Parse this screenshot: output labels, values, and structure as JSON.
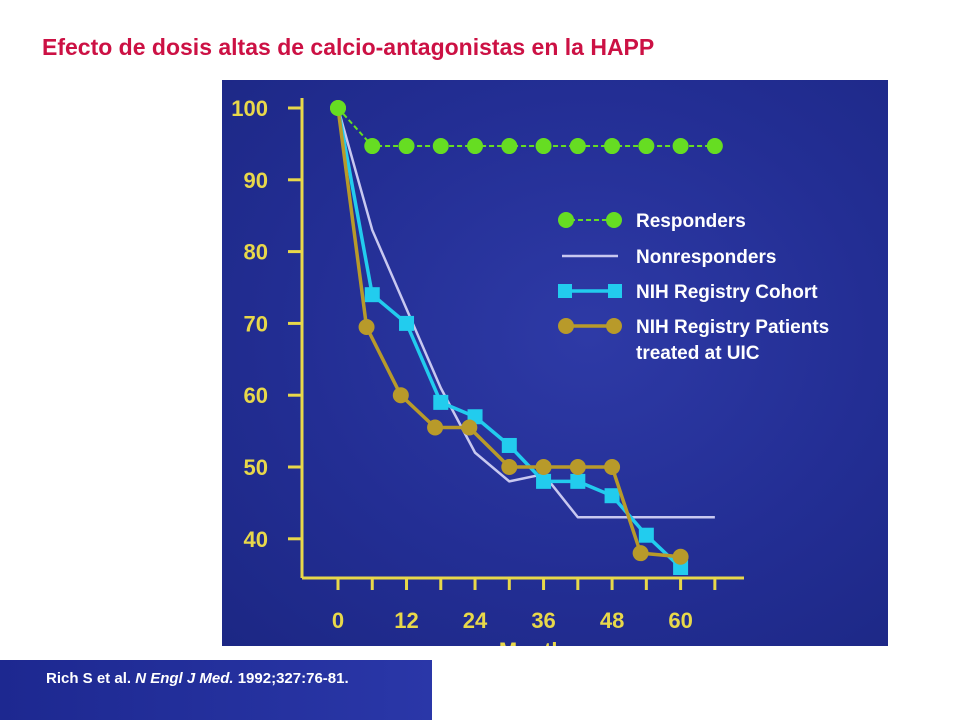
{
  "slide": {
    "title": "Efecto de dosis altas de calcio-antagonistas en la HAPP"
  },
  "citation": {
    "authors": "Rich S et al.",
    "journal": "N Engl J Med.",
    "reference": "1992;327:76-81."
  },
  "colors": {
    "title": "#cc1144",
    "panel_background": "#232e94",
    "axis": "#e8d84a",
    "responders": "#66dd22",
    "nonresponders": "#c8c8f0",
    "nih_cohort": "#22ccee",
    "nih_uic": "#b89a2a"
  },
  "chart_data": {
    "type": "line",
    "title": "",
    "xlabel": "Months",
    "ylabel": "",
    "xlim": [
      0,
      72
    ],
    "ylim": [
      35,
      100
    ],
    "x_ticks": [
      0,
      12,
      24,
      36,
      48,
      60
    ],
    "y_ticks": [
      40,
      50,
      60,
      70,
      80,
      90,
      100
    ],
    "grid": false,
    "legend_position": "right",
    "series": [
      {
        "name": "Responders",
        "marker": "circle",
        "x": [
          0,
          6,
          12,
          18,
          24,
          30,
          36,
          42,
          48,
          54,
          60,
          66
        ],
        "y": [
          100,
          94.7,
          94.7,
          94.7,
          94.7,
          94.7,
          94.7,
          94.7,
          94.7,
          94.7,
          94.7,
          94.7
        ]
      },
      {
        "name": "Nonresponders",
        "marker": "none",
        "x": [
          0,
          6,
          12,
          18,
          24,
          30,
          36,
          42,
          48,
          54,
          60,
          66
        ],
        "y": [
          100,
          83,
          72,
          61,
          52,
          48,
          49,
          43,
          43,
          43,
          43,
          43
        ]
      },
      {
        "name": "NIH Registry Cohort",
        "marker": "square",
        "x": [
          0,
          6,
          12,
          18,
          24,
          30,
          36,
          42,
          48,
          54,
          60
        ],
        "y": [
          100,
          74,
          70,
          59,
          57,
          53,
          48,
          48,
          46,
          40.5,
          36
        ]
      },
      {
        "name": "NIH Registry Patients treated at UIC",
        "marker": "circle",
        "x": [
          0,
          5,
          11,
          17,
          23,
          30,
          36,
          42,
          48,
          53,
          60
        ],
        "y": [
          100,
          69.5,
          60,
          55.5,
          55.5,
          50,
          50,
          50,
          50,
          38,
          37.5
        ]
      }
    ]
  }
}
